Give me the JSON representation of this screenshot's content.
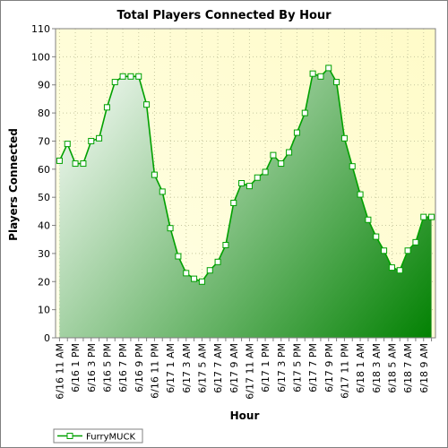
{
  "colors": {
    "line": "#00a000",
    "marker_fill": "#ffffff",
    "plot_bg_light": "#ffffe8",
    "plot_bg_dark": "#fffbc8",
    "grid": "#c8c8a0",
    "area_light": "#ffffff",
    "area_dark": "#008000"
  },
  "chart_data": {
    "type": "area",
    "title": "Total Players Connected By Hour",
    "xlabel": "Hour",
    "ylabel": "Players Connected",
    "ylim": [
      0,
      110
    ],
    "yticks": [
      0,
      10,
      20,
      30,
      40,
      50,
      60,
      70,
      80,
      90,
      100,
      110
    ],
    "grid": true,
    "legend": "bottom-left",
    "categories": [
      "6/16 11 AM",
      "",
      "6/16 1 PM",
      "",
      "6/16 3 PM",
      "",
      "6/16 5 PM",
      "",
      "6/16 7 PM",
      "",
      "6/16 9 PM",
      "",
      "6/16 11 PM",
      "",
      "6/17 1 AM",
      "",
      "6/17 3 AM",
      "",
      "6/17 5 AM",
      "",
      "6/17 7 AM",
      "",
      "6/17 9 AM",
      "",
      "6/17 11 AM",
      "",
      "6/17 1 PM",
      "",
      "6/17 3 PM",
      "",
      "6/17 5 PM",
      "",
      "6/17 7 PM",
      "",
      "6/17 9 PM",
      "",
      "6/17 11 PM",
      "",
      "6/18 1 AM",
      "",
      "6/18 3 AM",
      "",
      "6/18 5 AM",
      "",
      "6/18 7 AM",
      "",
      "6/18 9 AM",
      ""
    ],
    "series": [
      {
        "name": "FurryMUCK",
        "values": [
          63,
          69,
          62,
          62,
          70,
          71,
          82,
          91,
          93,
          93,
          93,
          83,
          58,
          52,
          39,
          29,
          23,
          21,
          20,
          24,
          27,
          33,
          48,
          55,
          54,
          57,
          59,
          65,
          62,
          66,
          73,
          80,
          94,
          93,
          96,
          91,
          71,
          61,
          51,
          42,
          36,
          31,
          25,
          24,
          31,
          34,
          43,
          43
        ]
      }
    ]
  }
}
